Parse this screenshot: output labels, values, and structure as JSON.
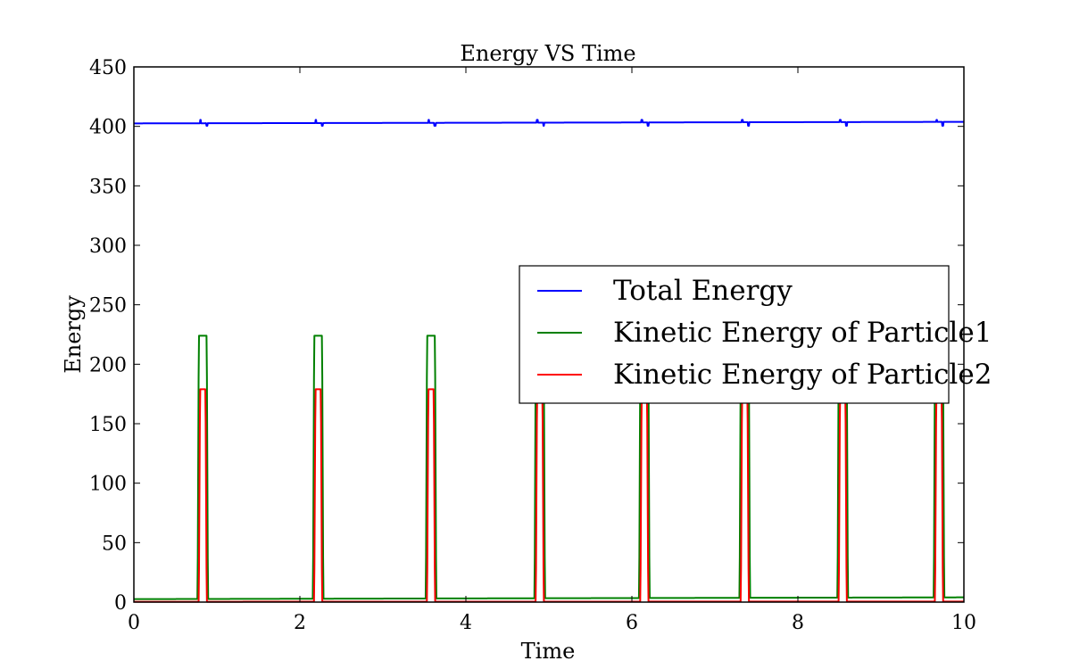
{
  "chart_data": {
    "type": "line",
    "title": "Energy VS Time",
    "xlabel": "Time",
    "ylabel": "Energy",
    "xlim": [
      0,
      10
    ],
    "ylim": [
      0,
      450
    ],
    "xticks": [
      0,
      2,
      4,
      6,
      8,
      10
    ],
    "yticks": [
      0,
      50,
      100,
      150,
      200,
      250,
      300,
      350,
      400,
      450
    ],
    "grid": false,
    "legend_position": "center-right",
    "series": [
      {
        "name": "Total Energy",
        "color": "#0000ff",
        "baseline_start": 402.5,
        "baseline_end": 403.8,
        "glitch_times": [
          0.81,
          2.2,
          3.56,
          4.87,
          6.13,
          7.34,
          8.52,
          9.68
        ],
        "glitch_high": 405.5,
        "glitch_low": 400.5
      },
      {
        "name": "Kinetic Energy of Particle1",
        "color": "#008000",
        "baseline_start": 2.5,
        "baseline_end": 4.0,
        "peak_times": [
          0.83,
          2.22,
          3.58,
          4.89,
          6.15,
          7.36,
          8.54,
          9.7
        ],
        "peak_value": 224,
        "peak_half_width": 0.045
      },
      {
        "name": "Kinetic Energy of Particle2",
        "color": "#ff0000",
        "baseline_start": 0.3,
        "baseline_end": 0.5,
        "peak_times": [
          0.83,
          2.22,
          3.58,
          4.89,
          6.15,
          7.36,
          8.54,
          9.7
        ],
        "peak_value": 179,
        "peak_half_width": 0.03
      }
    ]
  }
}
